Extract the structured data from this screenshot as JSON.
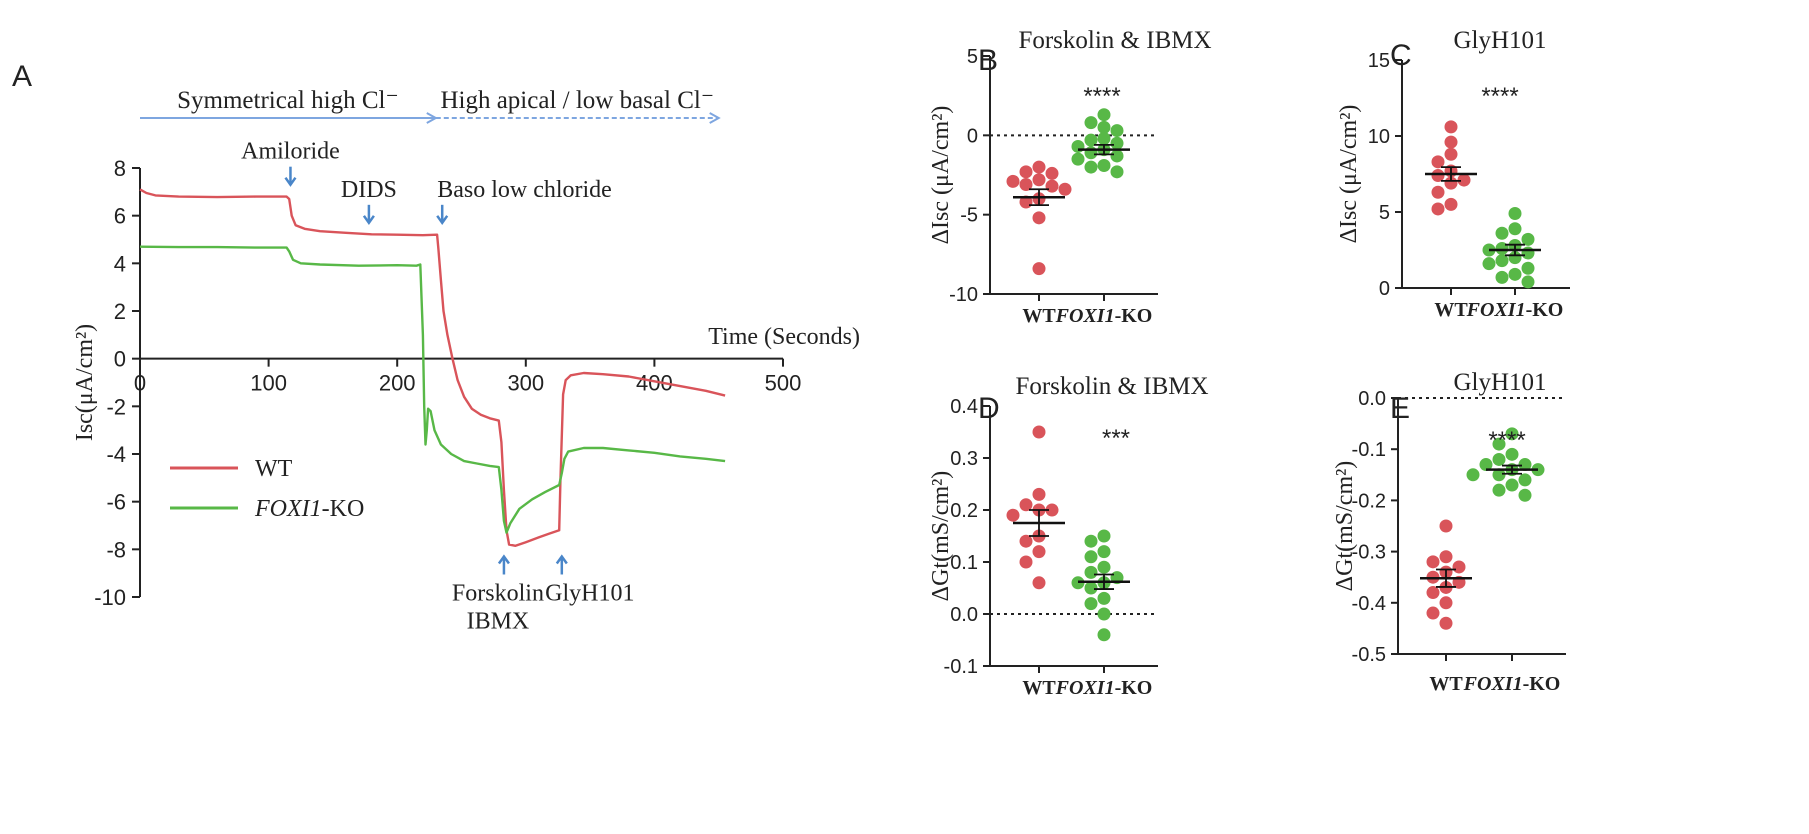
{
  "colors": {
    "wt": "#d9545a",
    "ko": "#58b847",
    "phase_line": "#7ea6e0",
    "arrow": "#4a86c9",
    "axis": "#222222"
  },
  "panel_letters": {
    "a": "A",
    "b": "B",
    "c": "C",
    "d": "D",
    "e": "E"
  },
  "chart_data": [
    {
      "id": "A",
      "type": "line",
      "ylabel": "Isc(μA/cm²)",
      "xlabel": "Time (Seconds)",
      "xlim": [
        0,
        500
      ],
      "ylim": [
        -10,
        8
      ],
      "x_ticks": [
        0,
        100,
        200,
        300,
        400,
        500
      ],
      "y_ticks": [
        8,
        6,
        4,
        2,
        0,
        -2,
        -4,
        -6,
        -8,
        -10
      ],
      "phases": [
        {
          "label": "Symmetrical high Cl⁻",
          "x_range": [
            0,
            230
          ],
          "style": "solid"
        },
        {
          "label": "High apical / low basal Cl⁻",
          "x_range": [
            230,
            450
          ],
          "style": "dashed"
        }
      ],
      "annotations": [
        {
          "lines": [
            "Amiloride"
          ],
          "x": 117,
          "y": 7.3,
          "arrow": "down",
          "text_pos": "above"
        },
        {
          "lines": [
            "DIDS"
          ],
          "x": 178,
          "y": 5.7,
          "arrow": "down",
          "text_pos": "above"
        },
        {
          "lines": [
            "Baso low chloride"
          ],
          "x": 235,
          "y": 5.7,
          "arrow": "down",
          "text_pos": "above"
        },
        {
          "lines": [
            "Forskolin",
            "IBMX"
          ],
          "x": 283,
          "y": -8.3,
          "arrow": "up",
          "text_pos": "below"
        },
        {
          "lines": [
            "GlyH101"
          ],
          "x": 328,
          "y": -8.3,
          "arrow": "up",
          "text_pos": "below"
        }
      ],
      "legend": {
        "position": "left",
        "items": [
          {
            "label": "WT",
            "series": "WT"
          },
          {
            "label_italic": "FOXI1",
            "label_rest": "-KO",
            "series": "FOXI1-KO"
          }
        ]
      },
      "series": [
        {
          "name": "WT",
          "color": "#d9545a",
          "points": [
            [
              0,
              7.1
            ],
            [
              5,
              6.95
            ],
            [
              12,
              6.85
            ],
            [
              30,
              6.8
            ],
            [
              60,
              6.78
            ],
            [
              90,
              6.8
            ],
            [
              114,
              6.8
            ],
            [
              116,
              6.7
            ],
            [
              118,
              6.0
            ],
            [
              121,
              5.6
            ],
            [
              128,
              5.45
            ],
            [
              140,
              5.35
            ],
            [
              160,
              5.28
            ],
            [
              180,
              5.22
            ],
            [
              200,
              5.2
            ],
            [
              220,
              5.18
            ],
            [
              231,
              5.2
            ],
            [
              232,
              4.6
            ],
            [
              234,
              3.3
            ],
            [
              236,
              2.0
            ],
            [
              239,
              1.0
            ],
            [
              243,
              0.0
            ],
            [
              247,
              -0.9
            ],
            [
              252,
              -1.6
            ],
            [
              258,
              -2.1
            ],
            [
              265,
              -2.35
            ],
            [
              272,
              -2.5
            ],
            [
              279,
              -2.6
            ],
            [
              281,
              -3.5
            ],
            [
              283,
              -5.5
            ],
            [
              285,
              -7.2
            ],
            [
              287,
              -7.8
            ],
            [
              292,
              -7.85
            ],
            [
              300,
              -7.7
            ],
            [
              310,
              -7.5
            ],
            [
              318,
              -7.35
            ],
            [
              326,
              -7.2
            ],
            [
              327,
              -5.0
            ],
            [
              329,
              -1.5
            ],
            [
              331,
              -0.9
            ],
            [
              335,
              -0.7
            ],
            [
              345,
              -0.6
            ],
            [
              360,
              -0.65
            ],
            [
              380,
              -0.75
            ],
            [
              400,
              -0.95
            ],
            [
              420,
              -1.15
            ],
            [
              440,
              -1.35
            ],
            [
              455,
              -1.55
            ]
          ]
        },
        {
          "name": "FOXI1-KO",
          "color": "#58b847",
          "points": [
            [
              0,
              4.7
            ],
            [
              30,
              4.68
            ],
            [
              60,
              4.68
            ],
            [
              90,
              4.66
            ],
            [
              114,
              4.66
            ],
            [
              116,
              4.5
            ],
            [
              119,
              4.15
            ],
            [
              125,
              4.0
            ],
            [
              140,
              3.95
            ],
            [
              170,
              3.9
            ],
            [
              200,
              3.92
            ],
            [
              215,
              3.9
            ],
            [
              218,
              3.95
            ],
            [
              220,
              1.0
            ],
            [
              221,
              -2.0
            ],
            [
              222,
              -3.6
            ],
            [
              223,
              -3.0
            ],
            [
              224,
              -2.1
            ],
            [
              226,
              -2.2
            ],
            [
              229,
              -3.0
            ],
            [
              234,
              -3.6
            ],
            [
              242,
              -4.0
            ],
            [
              252,
              -4.3
            ],
            [
              262,
              -4.4
            ],
            [
              272,
              -4.5
            ],
            [
              279,
              -4.55
            ],
            [
              281,
              -5.5
            ],
            [
              283,
              -6.8
            ],
            [
              285,
              -7.3
            ],
            [
              288,
              -6.9
            ],
            [
              295,
              -6.3
            ],
            [
              305,
              -5.9
            ],
            [
              315,
              -5.6
            ],
            [
              326,
              -5.3
            ],
            [
              328,
              -4.8
            ],
            [
              330,
              -4.2
            ],
            [
              333,
              -3.9
            ],
            [
              345,
              -3.75
            ],
            [
              360,
              -3.75
            ],
            [
              380,
              -3.85
            ],
            [
              400,
              -3.95
            ],
            [
              420,
              -4.1
            ],
            [
              440,
              -4.2
            ],
            [
              455,
              -4.3
            ]
          ]
        }
      ]
    },
    {
      "id": "B",
      "type": "scatter",
      "title": "Forskolin & IBMX",
      "ylabel": "ΔIsc (μA/cm²)",
      "ylim": [
        -10,
        5
      ],
      "y_ticks": [
        5,
        0,
        -5,
        -10
      ],
      "categories": [
        {
          "plain": "WT"
        },
        {
          "italic": "FOXI1",
          "rest": "-KO"
        }
      ],
      "zero_line": true,
      "significance": "****",
      "groups": [
        {
          "name": "WT",
          "mean": -3.9,
          "sem": 0.5,
          "values": [
            -2.0,
            -2.3,
            -2.4,
            -2.8,
            -2.9,
            -3.1,
            -3.2,
            -3.4,
            -4.0,
            -4.2,
            -5.2,
            -8.4
          ]
        },
        {
          "name": "FOXI1-KO",
          "mean": -0.9,
          "sem": 0.3,
          "values": [
            1.3,
            0.8,
            0.5,
            0.3,
            -0.2,
            -0.3,
            -0.5,
            -0.7,
            -0.9,
            -1.1,
            -1.3,
            -1.5,
            -1.9,
            -2.0,
            -2.3
          ]
        }
      ]
    },
    {
      "id": "C",
      "type": "scatter",
      "title": "GlyH101",
      "ylabel": "ΔIsc (μA/cm²)",
      "ylim": [
        0,
        15
      ],
      "y_ticks": [
        15,
        10,
        5,
        0
      ],
      "categories": [
        {
          "plain": "WT"
        },
        {
          "italic": "FOXI1",
          "rest": "-KO"
        }
      ],
      "zero_line": false,
      "significance": "****",
      "groups": [
        {
          "name": "WT",
          "mean": 7.5,
          "sem": 0.45,
          "values": [
            10.6,
            9.6,
            8.8,
            8.3,
            7.7,
            7.4,
            7.1,
            6.9,
            6.3,
            5.5,
            5.2
          ]
        },
        {
          "name": "FOXI1-KO",
          "mean": 2.5,
          "sem": 0.35,
          "values": [
            4.9,
            3.9,
            3.6,
            3.2,
            2.8,
            2.6,
            2.5,
            2.3,
            2.0,
            1.8,
            1.6,
            1.3,
            0.9,
            0.7,
            0.4
          ]
        }
      ]
    },
    {
      "id": "D",
      "type": "scatter",
      "title": "Forskolin & IBMX",
      "ylabel": "ΔGt(mS/cm²)",
      "ylim": [
        -0.1,
        0.4
      ],
      "y_ticks": [
        0.4,
        0.3,
        0.2,
        0.1,
        0.0,
        -0.1
      ],
      "y_tick_labels": [
        "0.4",
        "0.3",
        "0.2",
        "0.1",
        "0.0",
        "-0.1"
      ],
      "categories": [
        {
          "plain": "WT"
        },
        {
          "italic": "FOXI1",
          "rest": "-KO"
        }
      ],
      "zero_line": true,
      "significance": "***",
      "groups": [
        {
          "name": "WT",
          "mean": 0.175,
          "sem": 0.025,
          "values": [
            0.35,
            0.23,
            0.21,
            0.2,
            0.2,
            0.19,
            0.15,
            0.14,
            0.12,
            0.1,
            0.06
          ]
        },
        {
          "name": "FOXI1-KO",
          "mean": 0.062,
          "sem": 0.014,
          "values": [
            0.15,
            0.14,
            0.12,
            0.11,
            0.09,
            0.08,
            0.07,
            0.06,
            0.06,
            0.05,
            0.03,
            0.02,
            0.0,
            -0.04
          ]
        }
      ]
    },
    {
      "id": "E",
      "type": "scatter",
      "title": "GlyH101",
      "ylabel": "ΔGt(mS/cm²)",
      "ylim": [
        -0.5,
        0.0
      ],
      "y_ticks": [
        0.0,
        -0.1,
        -0.2,
        -0.3,
        -0.4,
        -0.5
      ],
      "y_tick_labels": [
        "0.0",
        "-0.1",
        "-0.2",
        "-0.3",
        "-0.4",
        "-0.5"
      ],
      "categories": [
        {
          "plain": "WT"
        },
        {
          "italic": "FOXI1",
          "rest": "-KO"
        }
      ],
      "zero_line": true,
      "significance": "****",
      "groups": [
        {
          "name": "WT",
          "mean": -0.352,
          "sem": 0.017,
          "values": [
            -0.25,
            -0.31,
            -0.32,
            -0.33,
            -0.34,
            -0.35,
            -0.36,
            -0.37,
            -0.38,
            -0.4,
            -0.42,
            -0.44
          ]
        },
        {
          "name": "FOXI1-KO",
          "mean": -0.14,
          "sem": 0.008,
          "values": [
            -0.07,
            -0.09,
            -0.11,
            -0.12,
            -0.13,
            -0.13,
            -0.14,
            -0.14,
            -0.15,
            -0.15,
            -0.16,
            -0.17,
            -0.18,
            -0.19
          ]
        }
      ]
    }
  ]
}
